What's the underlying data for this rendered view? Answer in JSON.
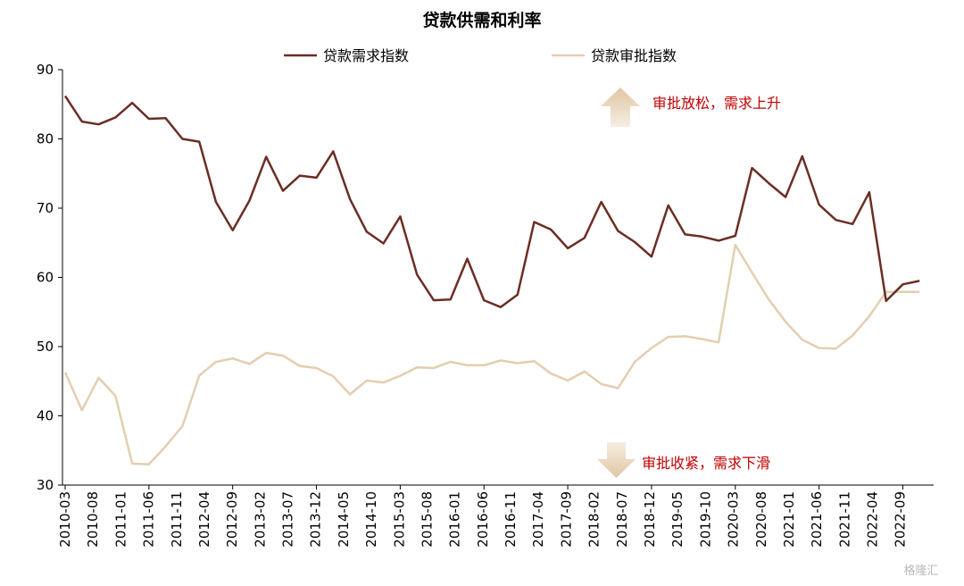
{
  "chart_data": {
    "type": "line",
    "title": "贷款供需和利率",
    "ylim": [
      30,
      90
    ],
    "yticks": [
      30,
      40,
      50,
      60,
      70,
      80,
      90
    ],
    "x": [
      "2010-03",
      "2010-06",
      "2010-09",
      "2010-12",
      "2011-03",
      "2011-06",
      "2011-09",
      "2011-12",
      "2012-03",
      "2012-06",
      "2012-09",
      "2012-12",
      "2013-03",
      "2013-06",
      "2013-09",
      "2013-12",
      "2014-03",
      "2014-06",
      "2014-09",
      "2014-12",
      "2015-03",
      "2015-06",
      "2015-09",
      "2015-12",
      "2016-03",
      "2016-06",
      "2016-09",
      "2016-12",
      "2017-03",
      "2017-06",
      "2017-09",
      "2017-12",
      "2018-03",
      "2018-06",
      "2018-09",
      "2018-12",
      "2019-03",
      "2019-06",
      "2019-09",
      "2019-12",
      "2020-03",
      "2020-06",
      "2020-09",
      "2020-12",
      "2021-03",
      "2021-06",
      "2021-09",
      "2021-12",
      "2022-03",
      "2022-06",
      "2022-09",
      "2022-12"
    ],
    "x_tick_labels": [
      "2010-03",
      "2010-08",
      "2011-01",
      "2011-06",
      "2011-11",
      "2012-04",
      "2012-09",
      "2013-02",
      "2013-07",
      "2013-12",
      "2014-05",
      "2014-10",
      "2015-03",
      "2015-08",
      "2016-01",
      "2016-06",
      "2016-11",
      "2017-04",
      "2017-09",
      "2018-02",
      "2018-07",
      "2018-12",
      "2019-05",
      "2019-10",
      "2020-03",
      "2020-08",
      "2021-01",
      "2021-06",
      "2021-11",
      "2022-04",
      "2022-09"
    ],
    "series": [
      {
        "name": "贷款需求指数",
        "color": "#6b2e24",
        "values": [
          86.2,
          82.5,
          82.1,
          83.1,
          85.2,
          82.9,
          83.0,
          80.0,
          79.6,
          70.9,
          66.8,
          71.1,
          77.4,
          72.5,
          74.7,
          74.4,
          78.2,
          71.3,
          66.6,
          64.9,
          68.8,
          60.4,
          56.7,
          56.8,
          62.7,
          56.7,
          55.7,
          57.5,
          68.0,
          66.9,
          64.2,
          65.7,
          70.9,
          66.7,
          65.1,
          63.0,
          70.4,
          66.2,
          65.9,
          65.3,
          66.0,
          75.8,
          73.6,
          71.6,
          77.5,
          70.5,
          68.3,
          67.7,
          72.3,
          56.6,
          59.0,
          59.5
        ]
      },
      {
        "name": "贷款审批指数",
        "color": "#e3ceb0",
        "values": [
          46.3,
          40.8,
          45.5,
          42.9,
          33.1,
          33.0,
          35.6,
          38.5,
          45.8,
          47.8,
          48.3,
          47.5,
          49.1,
          48.7,
          47.2,
          46.9,
          45.7,
          43.1,
          45.1,
          44.8,
          45.8,
          47.0,
          46.9,
          47.8,
          47.3,
          47.3,
          48.0,
          47.6,
          47.9,
          46.1,
          45.1,
          46.4,
          44.6,
          44.0,
          47.8,
          49.8,
          51.4,
          51.5,
          51.1,
          50.6,
          64.7,
          60.7,
          56.8,
          53.6,
          51.0,
          49.8,
          49.7,
          51.6,
          54.4,
          57.9,
          57.9,
          57.9
        ]
      }
    ],
    "legend_position": "top",
    "annotations": [
      {
        "text": "审批放松，需求上升",
        "direction": "up"
      },
      {
        "text": "审批收紧，需求下滑",
        "direction": "down"
      }
    ],
    "grid": false
  },
  "watermark": "格隆汇"
}
